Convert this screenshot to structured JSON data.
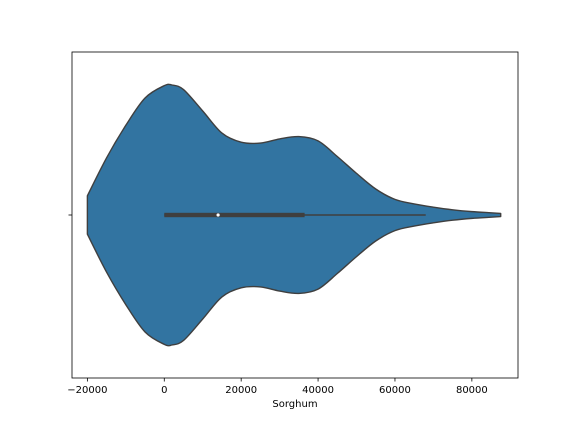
{
  "chart_data": {
    "type": "violin",
    "xlabel": "Sorghum",
    "ylabel": "",
    "title": "",
    "xlim": [
      -24000,
      92000
    ],
    "orientation": "horizontal",
    "grid": false,
    "x_ticks": [
      -20000,
      0,
      20000,
      40000,
      60000,
      80000
    ],
    "x_tick_labels": [
      "−20000",
      "0",
      "20000",
      "40000",
      "60000",
      "80000"
    ],
    "y_ticks": [
      ""
    ],
    "colors": {
      "body": "#3274a1",
      "edge": "#3f3f3f",
      "box": "#3f3f3f",
      "median": "#ffffff"
    },
    "density_profile": [
      [
        -20000,
        0.148
      ],
      [
        -15000,
        0.44
      ],
      [
        -10000,
        0.69
      ],
      [
        -5000,
        0.9
      ],
      [
        0,
        0.995
      ],
      [
        2000,
        1.0
      ],
      [
        5000,
        0.965
      ],
      [
        10000,
        0.8
      ],
      [
        15000,
        0.63
      ],
      [
        20000,
        0.56
      ],
      [
        25000,
        0.553
      ],
      [
        30000,
        0.585
      ],
      [
        35000,
        0.603
      ],
      [
        40000,
        0.57
      ],
      [
        45000,
        0.45
      ],
      [
        50000,
        0.32
      ],
      [
        55000,
        0.2
      ],
      [
        60000,
        0.12
      ],
      [
        65000,
        0.085
      ],
      [
        70000,
        0.06
      ],
      [
        75000,
        0.04
      ],
      [
        80000,
        0.026
      ],
      [
        85000,
        0.017
      ],
      [
        87500,
        0.012
      ]
    ],
    "box": {
      "q1": 0,
      "median": 14000,
      "q3": 36500,
      "whisker_low": 0,
      "whisker_high": 68000
    }
  }
}
